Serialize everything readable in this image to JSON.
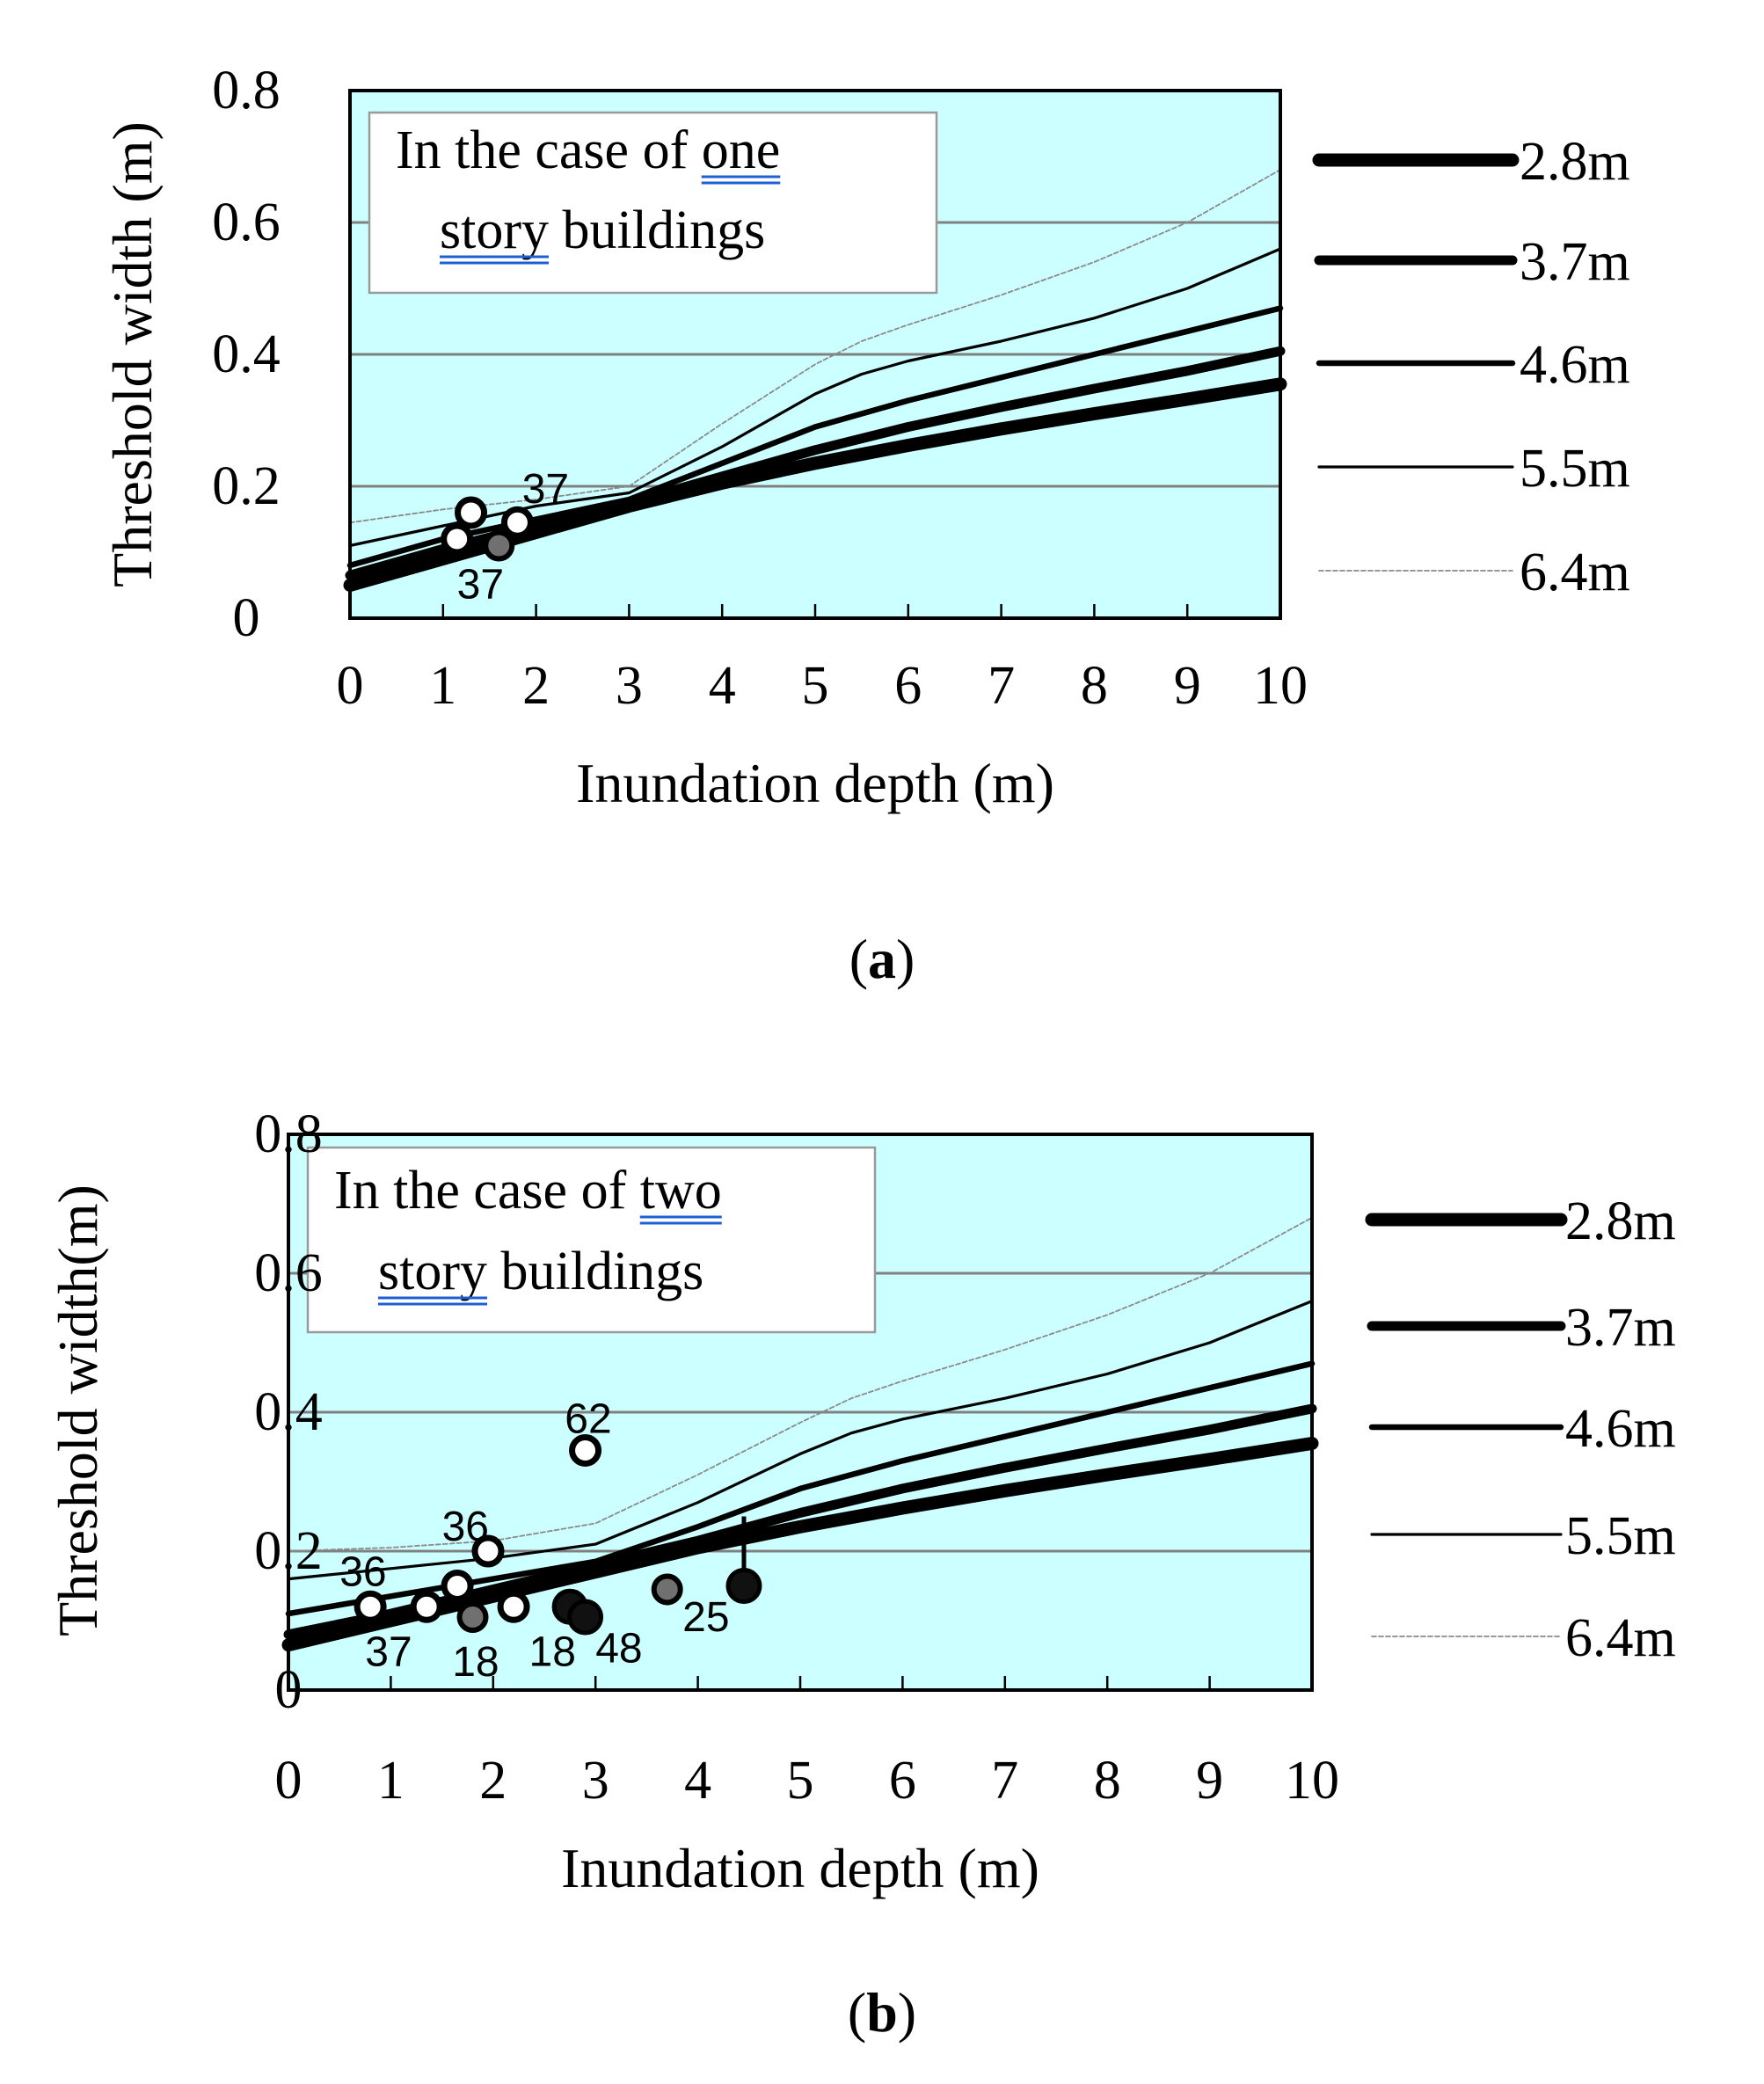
{
  "chart_data": [
    {
      "type": "line",
      "panel_label": "a",
      "xlabel": "Inundation depth (m)",
      "ylabel": "Threshold width (m)",
      "xlim": [
        0,
        10
      ],
      "ylim": [
        0,
        0.8
      ],
      "x_ticks": [
        "0",
        "1",
        "2",
        "3",
        "4",
        "5",
        "6",
        "7",
        "8",
        "9",
        "10"
      ],
      "y_ticks": [
        "0",
        "0.2",
        "0.4",
        "0.6",
        "0.8"
      ],
      "grid": true,
      "background": "#ccffff",
      "annotation": {
        "line1_prefix": "In the case of ",
        "line1_underlined": "one",
        "line2_underlined": "story",
        "line2_suffix": " buildings"
      },
      "series": [
        {
          "name": "2.8m",
          "x": [
            0,
            1,
            2,
            3,
            4,
            5,
            6,
            7,
            8,
            9,
            10
          ],
          "y": [
            0.05,
            0.09,
            0.13,
            0.17,
            0.205,
            0.235,
            0.262,
            0.287,
            0.31,
            0.332,
            0.355
          ]
        },
        {
          "name": "3.7m",
          "x": [
            0,
            1,
            2,
            3,
            4,
            5,
            6,
            7,
            8,
            9,
            10
          ],
          "y": [
            0.065,
            0.105,
            0.14,
            0.175,
            0.215,
            0.255,
            0.29,
            0.32,
            0.348,
            0.375,
            0.405
          ]
        },
        {
          "name": "4.6m",
          "x": [
            0,
            1,
            2,
            3,
            4,
            5,
            6,
            7,
            8,
            9,
            10
          ],
          "y": [
            0.08,
            0.12,
            0.15,
            0.18,
            0.235,
            0.29,
            0.33,
            0.365,
            0.4,
            0.435,
            0.47
          ]
        },
        {
          "name": "5.5m",
          "x": [
            0,
            1,
            2,
            3,
            4,
            5,
            5.5,
            6,
            7,
            8,
            9,
            10
          ],
          "y": [
            0.11,
            0.14,
            0.17,
            0.19,
            0.26,
            0.34,
            0.37,
            0.39,
            0.42,
            0.455,
            0.5,
            0.56
          ]
        },
        {
          "name": "6.4m",
          "x": [
            0,
            1,
            2,
            3,
            4,
            5,
            5.5,
            6,
            7,
            8,
            9,
            10
          ],
          "y": [
            0.145,
            0.165,
            0.18,
            0.2,
            0.295,
            0.385,
            0.42,
            0.445,
            0.49,
            0.54,
            0.6,
            0.68
          ]
        }
      ],
      "legend": [
        {
          "label": "2.8m",
          "series": "2.8m"
        },
        {
          "label": "3.7m",
          "series": "3.7m"
        },
        {
          "label": "4.6m",
          "series": "4.6m"
        },
        {
          "label": "5.5m",
          "series": "5.5m"
        },
        {
          "label": "6.4m",
          "series": "6.4m"
        }
      ],
      "points": [
        {
          "x": 1.3,
          "y": 0.16,
          "kind": "white"
        },
        {
          "x": 1.8,
          "y": 0.145,
          "kind": "white"
        },
        {
          "x": 1.15,
          "y": 0.12,
          "kind": "white"
        },
        {
          "x": 1.6,
          "y": 0.11,
          "kind": "gray"
        }
      ],
      "point_labels": [
        {
          "text": "37",
          "x": 1.85,
          "y": 0.175
        },
        {
          "text": "37",
          "x": 1.15,
          "y": 0.03
        }
      ]
    },
    {
      "type": "line",
      "panel_label": "b",
      "xlabel": "Inundation depth (m)",
      "ylabel": "Threshold width(m)",
      "xlim": [
        0,
        10
      ],
      "ylim": [
        0,
        0.8
      ],
      "x_ticks": [
        "0",
        "1",
        "2",
        "3",
        "4",
        "5",
        "6",
        "7",
        "8",
        "9",
        "10"
      ],
      "y_ticks": [
        "0",
        "0.2",
        "0.4",
        "0.6",
        "0.8"
      ],
      "grid": true,
      "background": "#ccffff",
      "annotation": {
        "line1_prefix": "In the case of ",
        "line1_underlined": "two",
        "line2_underlined": "story",
        "line2_suffix": " buildings"
      },
      "series": [
        {
          "name": "2.8m",
          "x": [
            0,
            1,
            2,
            3,
            4,
            5,
            6,
            7,
            8,
            9,
            10
          ],
          "y": [
            0.065,
            0.1,
            0.135,
            0.17,
            0.205,
            0.235,
            0.262,
            0.287,
            0.31,
            0.332,
            0.355
          ]
        },
        {
          "name": "3.7m",
          "x": [
            0,
            1,
            2,
            3,
            4,
            5,
            6,
            7,
            8,
            9,
            10
          ],
          "y": [
            0.08,
            0.11,
            0.145,
            0.18,
            0.215,
            0.255,
            0.29,
            0.32,
            0.348,
            0.375,
            0.405
          ]
        },
        {
          "name": "4.6m",
          "x": [
            0,
            1,
            2,
            3,
            4,
            5,
            6,
            7,
            8,
            9,
            10
          ],
          "y": [
            0.11,
            0.135,
            0.16,
            0.185,
            0.235,
            0.29,
            0.33,
            0.365,
            0.4,
            0.435,
            0.47
          ]
        },
        {
          "name": "5.5m",
          "x": [
            0,
            1,
            2,
            3,
            4,
            5,
            5.5,
            6,
            7,
            8,
            9,
            10
          ],
          "y": [
            0.16,
            0.175,
            0.19,
            0.21,
            0.27,
            0.34,
            0.37,
            0.39,
            0.42,
            0.455,
            0.5,
            0.56
          ]
        },
        {
          "name": "6.4m",
          "x": [
            0,
            1,
            2,
            3,
            4,
            5,
            5.5,
            6,
            7,
            8,
            9,
            10
          ],
          "y": [
            0.2,
            0.205,
            0.215,
            0.24,
            0.31,
            0.385,
            0.42,
            0.445,
            0.49,
            0.54,
            0.6,
            0.68
          ]
        }
      ],
      "legend": [
        {
          "label": "2.8m",
          "series": "2.8m"
        },
        {
          "label": "3.7m",
          "series": "3.7m"
        },
        {
          "label": "4.6m",
          "series": "4.6m"
        },
        {
          "label": "5.5m",
          "series": "5.5m"
        },
        {
          "label": "6.4m",
          "series": "6.4m"
        }
      ],
      "points": [
        {
          "x": 2.9,
          "y": 0.345,
          "kind": "white"
        },
        {
          "x": 1.95,
          "y": 0.2,
          "kind": "white"
        },
        {
          "x": 1.65,
          "y": 0.15,
          "kind": "white"
        },
        {
          "x": 0.8,
          "y": 0.12,
          "kind": "white"
        },
        {
          "x": 1.35,
          "y": 0.12,
          "kind": "white"
        },
        {
          "x": 2.2,
          "y": 0.12,
          "kind": "white"
        },
        {
          "x": 1.8,
          "y": 0.105,
          "kind": "gray"
        },
        {
          "x": 3.7,
          "y": 0.145,
          "kind": "gray"
        },
        {
          "x": 2.75,
          "y": 0.12,
          "kind": "black"
        },
        {
          "x": 2.9,
          "y": 0.105,
          "kind": "black"
        },
        {
          "x": 4.45,
          "y": 0.15,
          "kind": "black"
        }
      ],
      "point_labels": [
        {
          "text": "62",
          "x": 2.7,
          "y": 0.37
        },
        {
          "text": "36",
          "x": 1.5,
          "y": 0.215
        },
        {
          "text": "36",
          "x": 0.5,
          "y": 0.15
        },
        {
          "text": "37",
          "x": 0.75,
          "y": 0.035
        },
        {
          "text": "18",
          "x": 1.6,
          "y": 0.02
        },
        {
          "text": "18",
          "x": 2.35,
          "y": 0.035
        },
        {
          "text": "48",
          "x": 3.0,
          "y": 0.04
        },
        {
          "text": "25",
          "x": 3.85,
          "y": 0.085
        }
      ],
      "error_bar": {
        "x": 4.45,
        "y_low": 0.15,
        "y_high": 0.25
      }
    }
  ]
}
